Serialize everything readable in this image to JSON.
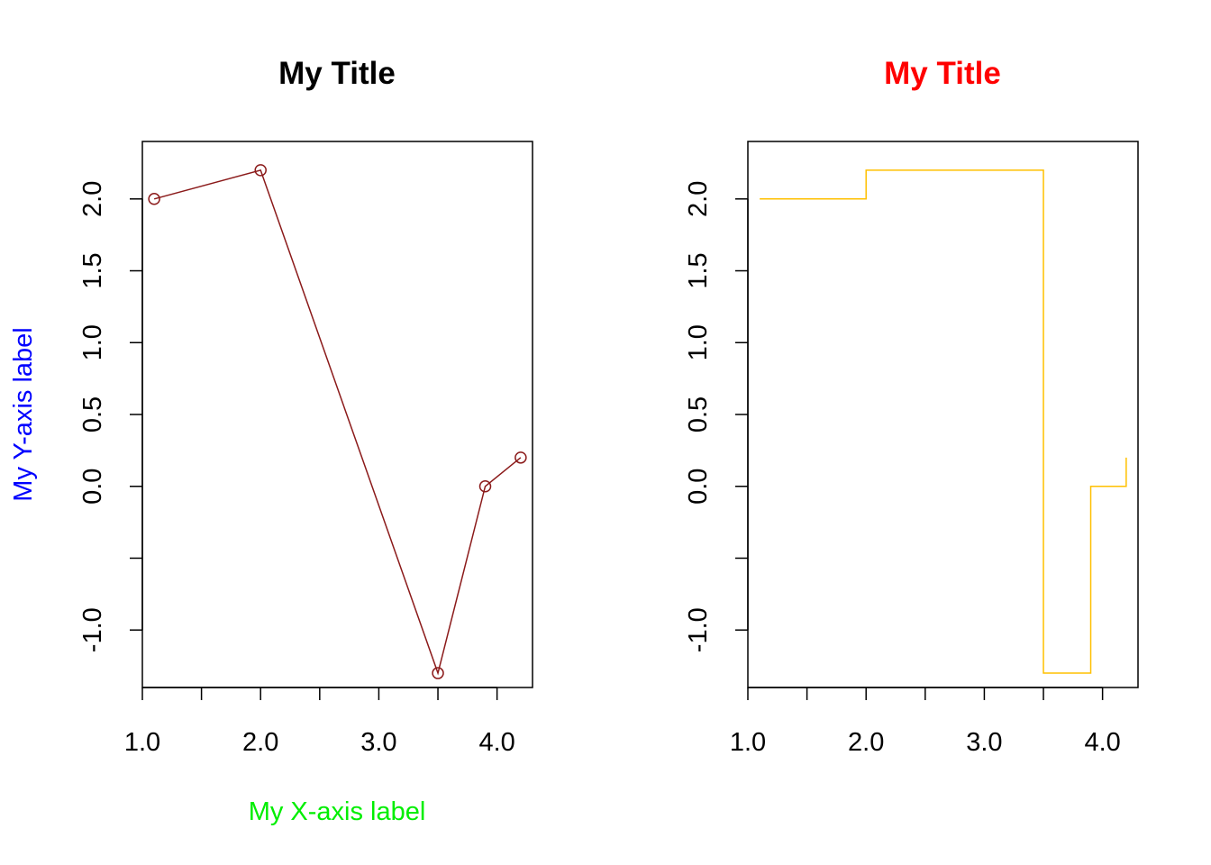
{
  "chart_data": [
    {
      "type": "line",
      "title": "My Title",
      "title_color": "#000000",
      "xlabel": "My X-axis label",
      "xlabel_color": "#00ee00",
      "ylabel": "My Y-axis label",
      "ylabel_color": "#0000ff",
      "line_color": "#8b1a1a",
      "markers": "open-circle",
      "x": [
        1.1,
        2.0,
        3.5,
        3.9,
        4.2
      ],
      "y": [
        2.0,
        2.2,
        -1.3,
        0.0,
        0.2
      ],
      "xlim": [
        1.0,
        4.3
      ],
      "ylim": [
        -1.4,
        2.4
      ],
      "xticks": [
        1.0,
        1.5,
        2.0,
        2.5,
        3.0,
        3.5,
        4.0
      ],
      "xtick_labels": [
        "1.0",
        "",
        "2.0",
        "",
        "3.0",
        "",
        "4.0"
      ],
      "yticks": [
        -1.0,
        -0.5,
        0.0,
        0.5,
        1.0,
        1.5,
        2.0
      ],
      "ytick_labels": [
        "-1.0",
        "",
        "0.0",
        "0.5",
        "1.0",
        "1.5",
        "2.0"
      ],
      "grid": false
    },
    {
      "type": "line",
      "step": true,
      "title": "My Title",
      "title_color": "#ff0000",
      "xlabel": "",
      "ylabel": "",
      "line_color": "#ffc000",
      "x": [
        1.1,
        2.0,
        3.5,
        3.9,
        4.2
      ],
      "y": [
        2.0,
        2.2,
        -1.3,
        0.0,
        0.2
      ],
      "xlim": [
        1.0,
        4.3
      ],
      "ylim": [
        -1.4,
        2.4
      ],
      "xticks": [
        1.0,
        1.5,
        2.0,
        2.5,
        3.0,
        3.5,
        4.0
      ],
      "xtick_labels": [
        "1.0",
        "",
        "2.0",
        "",
        "3.0",
        "",
        "4.0"
      ],
      "yticks": [
        -1.0,
        -0.5,
        0.0,
        0.5,
        1.0,
        1.5,
        2.0
      ],
      "ytick_labels": [
        "-1.0",
        "",
        "0.0",
        "0.5",
        "1.0",
        "1.5",
        "2.0"
      ],
      "grid": false
    }
  ]
}
